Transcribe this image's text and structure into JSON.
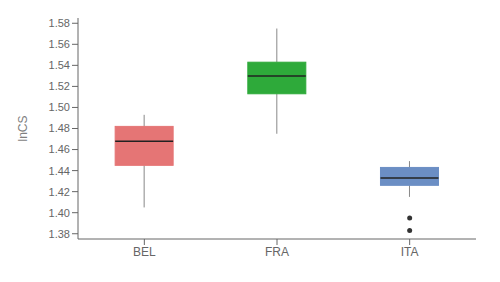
{
  "chart_data": {
    "type": "box",
    "categories": [
      "BEL",
      "FRA",
      "ITA"
    ],
    "q1": [
      1.445,
      1.513,
      1.426
    ],
    "median": [
      1.468,
      1.53,
      1.433
    ],
    "q3": [
      1.482,
      1.543,
      1.443
    ],
    "whisker_low": [
      1.405,
      1.475,
      1.415
    ],
    "whisker_high": [
      1.493,
      1.575,
      1.449
    ],
    "outliers": [
      [],
      [],
      [
        1.395,
        1.383
      ]
    ],
    "colors": [
      "#E57575",
      "#2EAA3A",
      "#6B8EC4"
    ],
    "ylabel": "lnCS",
    "ylim": [
      1.375,
      1.585
    ],
    "yticks": [
      1.38,
      {
        "value": 1.4,
        "label": "1.40"
      },
      1.42,
      1.44,
      1.46,
      1.48,
      {
        "value": 1.5,
        "label": "1.50"
      },
      1.52,
      1.54,
      1.56,
      1.58
    ],
    "grid": false
  }
}
